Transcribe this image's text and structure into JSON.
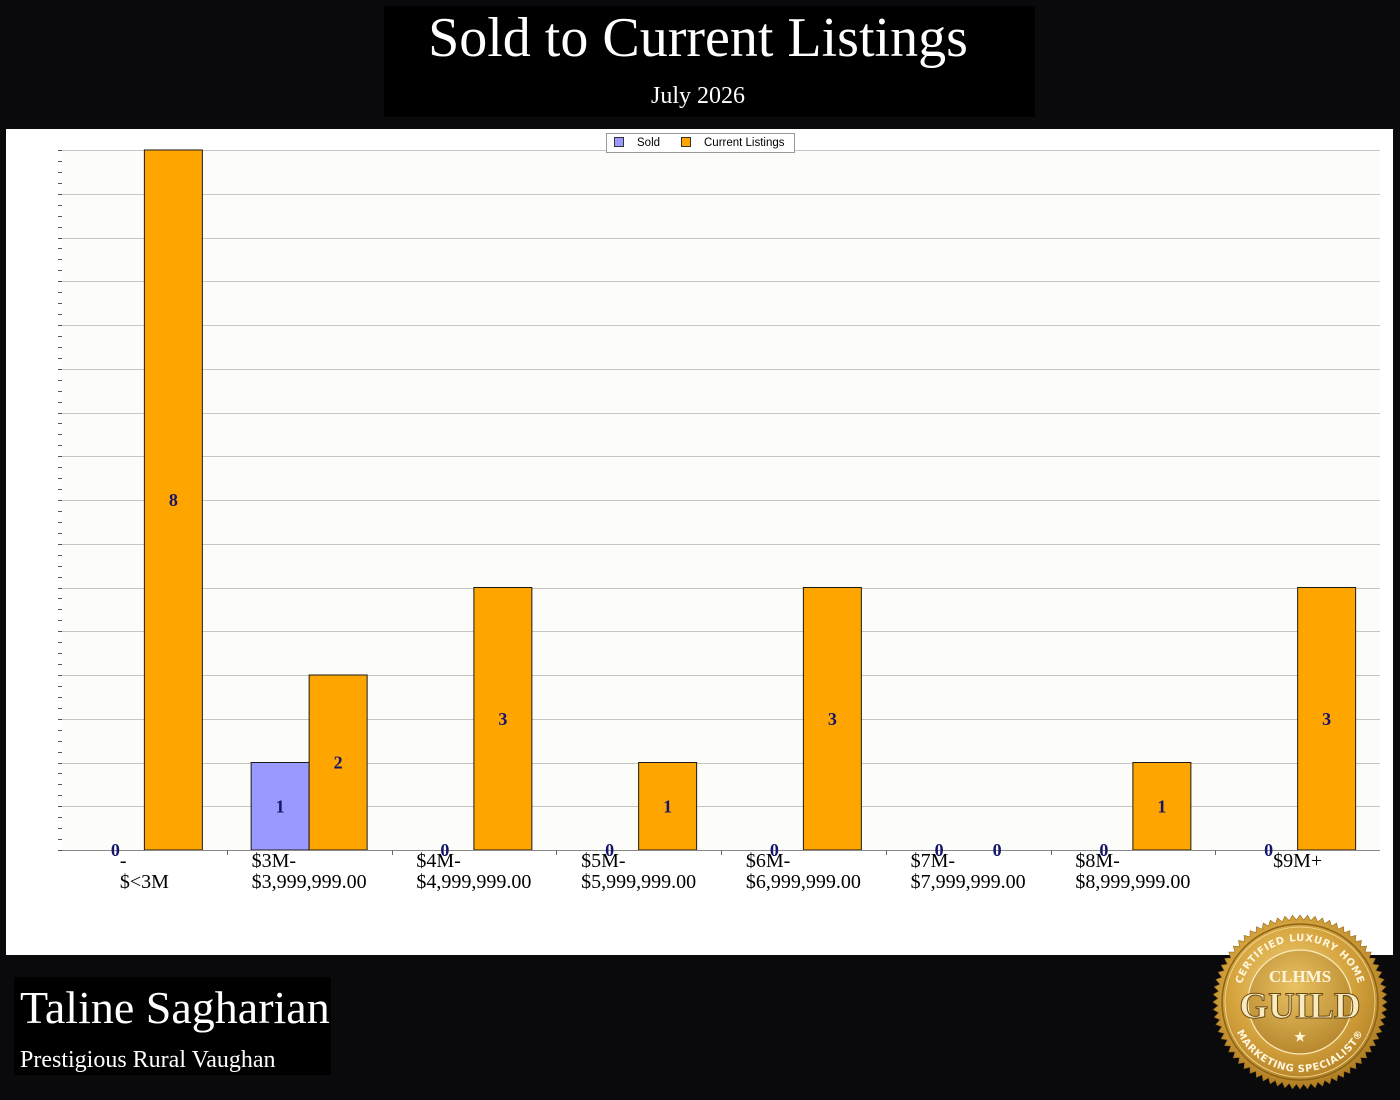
{
  "chart_data": {
    "type": "bar",
    "title": "Sold to Current Listings",
    "subtitle": "July 2026",
    "xlabel": "",
    "ylabel": "",
    "categories": [
      "-\n$<3M",
      "$3M-\n$3,999,999.00",
      "$4M-\n$4,999,999.00",
      "$5M-\n$5,999,999.00",
      "$6M-\n$6,999,999.00",
      "$7M-\n$7,999,999.00",
      "$8M-\n$8,999,999.00",
      "$9M+"
    ],
    "series": [
      {
        "name": "Sold",
        "values": [
          0,
          1,
          0,
          0,
          0,
          0,
          0,
          0
        ],
        "color": "#9999ff"
      },
      {
        "name": "Current Listings",
        "values": [
          8,
          2,
          3,
          1,
          3,
          0,
          1,
          3
        ],
        "color": "#ffa500"
      }
    ],
    "ylim": [
      0,
      8
    ],
    "grid": true,
    "legend": "top-center",
    "data_labels": true
  },
  "agent": {
    "name": "Taline Sagharian",
    "area": "Prestigious Rural Vaughan"
  },
  "logo": {
    "top_text": "CERTIFIED LUXURY HOME",
    "bottom_text": "MARKETING SPECIALIST®",
    "abbr": "CLHMS",
    "word": "GUILD",
    "icon": "star-icon"
  },
  "colors": {
    "background": "#0a090c",
    "panel": "#ffffff",
    "title_box": "#000000",
    "value_label": "#15156b",
    "seal_gold": "#d4a23c"
  }
}
